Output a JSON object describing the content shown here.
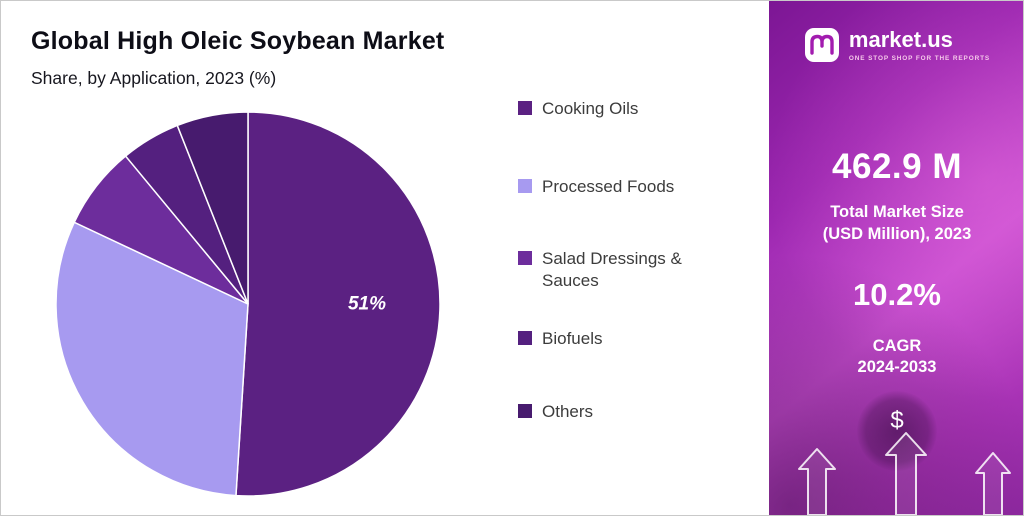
{
  "chart_area": {
    "title": "Global High Oleic Soybean Market",
    "subtitle": "Share, by Application, 2023 (%)"
  },
  "chart_data": {
    "type": "pie",
    "title": "Global High Oleic Soybean Market",
    "subtitle": "Share, by Application, 2023 (%)",
    "categories": [
      "Cooking Oils",
      "Processed Foods",
      "Salad Dressings & Sauces",
      "Biofuels",
      "Others"
    ],
    "values": [
      51,
      31,
      7,
      5,
      6
    ],
    "colors": [
      "#5b2182",
      "#a79af0",
      "#6d2d9c",
      "#54207f",
      "#471b6e"
    ],
    "slice_label": {
      "text": "51%",
      "category": "Cooking Oils"
    },
    "legend_position": "right",
    "start_angle_deg": 0,
    "direction": "clockwise",
    "grid": false
  },
  "sidebar": {
    "brand_name": "market.us",
    "brand_tagline": "ONE STOP SHOP FOR THE REPORTS",
    "stat1_value": "462.9 M",
    "stat1_label_line1": "Total Market Size",
    "stat1_label_line2": "(USD Million), 2023",
    "stat2_value": "10.2%",
    "stat2_label_line1": "CAGR",
    "stat2_label_line2": "2024-2033",
    "dollar_symbol": "$",
    "accent_colors": [
      "#7c1694",
      "#c64ccf",
      "#8e28a0"
    ]
  }
}
